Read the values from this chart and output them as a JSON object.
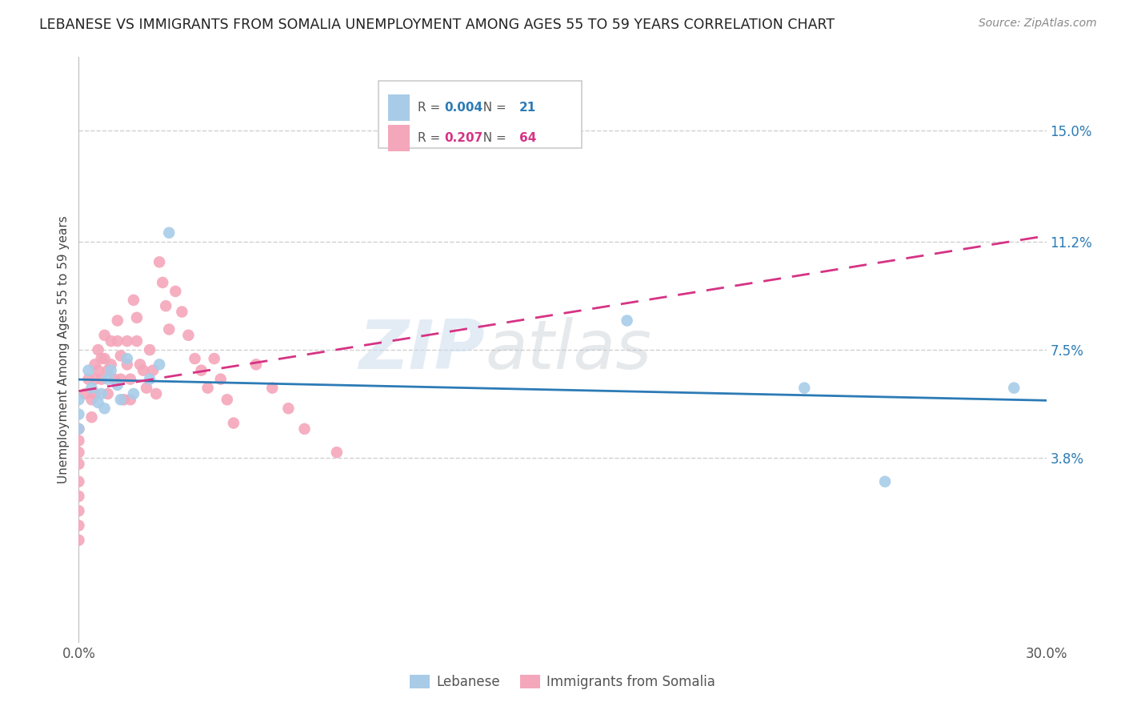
{
  "title": "LEBANESE VS IMMIGRANTS FROM SOMALIA UNEMPLOYMENT AMONG AGES 55 TO 59 YEARS CORRELATION CHART",
  "source": "Source: ZipAtlas.com",
  "ylabel": "Unemployment Among Ages 55 to 59 years",
  "xlim": [
    0.0,
    0.3
  ],
  "ylim": [
    -0.025,
    0.175
  ],
  "xticks": [
    0.0,
    0.05,
    0.1,
    0.15,
    0.2,
    0.25,
    0.3
  ],
  "xticklabels": [
    "0.0%",
    "",
    "",
    "",
    "",
    "",
    "30.0%"
  ],
  "yticks_right": [
    0.038,
    0.075,
    0.112,
    0.15
  ],
  "ytick_labels_right": [
    "3.8%",
    "7.5%",
    "11.2%",
    "15.0%"
  ],
  "watermark_zip": "ZIP",
  "watermark_atlas": "atlas",
  "legend_R1": "0.004",
  "legend_N1": "21",
  "legend_R2": "0.207",
  "legend_N2": "64",
  "blue_color": "#a8cce8",
  "pink_color": "#f4a7bb",
  "blue_line_color": "#2c7bb6",
  "pink_line_color": "#d63384",
  "background_color": "#ffffff",
  "grid_color": "#d0d0d0",
  "lebanese_x": [
    0.0,
    0.0,
    0.0,
    0.003,
    0.004,
    0.006,
    0.007,
    0.008,
    0.009,
    0.01,
    0.012,
    0.013,
    0.015,
    0.017,
    0.022,
    0.025,
    0.028,
    0.17,
    0.225,
    0.25,
    0.29
  ],
  "lebanese_y": [
    0.058,
    0.053,
    0.048,
    0.068,
    0.062,
    0.057,
    0.06,
    0.055,
    0.065,
    0.068,
    0.063,
    0.058,
    0.072,
    0.06,
    0.065,
    0.07,
    0.115,
    0.085,
    0.062,
    0.03,
    0.062
  ],
  "somalia_x": [
    0.0,
    0.0,
    0.0,
    0.0,
    0.0,
    0.0,
    0.0,
    0.0,
    0.0,
    0.002,
    0.003,
    0.004,
    0.004,
    0.005,
    0.005,
    0.005,
    0.006,
    0.006,
    0.007,
    0.007,
    0.008,
    0.008,
    0.009,
    0.009,
    0.01,
    0.01,
    0.011,
    0.012,
    0.012,
    0.013,
    0.013,
    0.014,
    0.015,
    0.015,
    0.016,
    0.016,
    0.017,
    0.018,
    0.018,
    0.019,
    0.02,
    0.021,
    0.022,
    0.023,
    0.024,
    0.025,
    0.026,
    0.027,
    0.028,
    0.03,
    0.032,
    0.034,
    0.036,
    0.038,
    0.04,
    0.042,
    0.044,
    0.046,
    0.048,
    0.055,
    0.06,
    0.065,
    0.07,
    0.08
  ],
  "somalia_y": [
    0.048,
    0.044,
    0.04,
    0.036,
    0.03,
    0.025,
    0.02,
    0.015,
    0.01,
    0.06,
    0.065,
    0.058,
    0.052,
    0.07,
    0.065,
    0.06,
    0.075,
    0.068,
    0.072,
    0.065,
    0.08,
    0.072,
    0.068,
    0.06,
    0.078,
    0.07,
    0.065,
    0.085,
    0.078,
    0.073,
    0.065,
    0.058,
    0.078,
    0.07,
    0.065,
    0.058,
    0.092,
    0.086,
    0.078,
    0.07,
    0.068,
    0.062,
    0.075,
    0.068,
    0.06,
    0.105,
    0.098,
    0.09,
    0.082,
    0.095,
    0.088,
    0.08,
    0.072,
    0.068,
    0.062,
    0.072,
    0.065,
    0.058,
    0.05,
    0.07,
    0.062,
    0.055,
    0.048,
    0.04
  ]
}
